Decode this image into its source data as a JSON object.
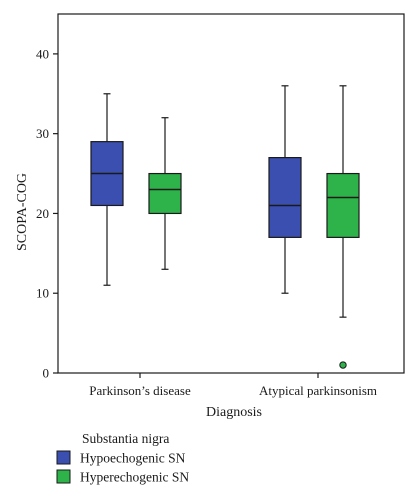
{
  "chart_data": {
    "type": "box",
    "xlabel": "Diagnosis",
    "ylabel": "SCOPA-COG",
    "ylim": [
      0,
      45
    ],
    "yticks": [
      0,
      10,
      20,
      30,
      40
    ],
    "categories": [
      "Parkinson’s disease",
      "Atypical parkinsonism"
    ],
    "series": [
      {
        "name": "Hypoechogenic SN",
        "color": "#3b4fb0",
        "boxes": [
          {
            "min": 11,
            "q1": 21,
            "median": 25,
            "q3": 29,
            "max": 35,
            "outliers": []
          },
          {
            "min": 10,
            "q1": 17,
            "median": 21,
            "q3": 27,
            "max": 36,
            "outliers": []
          }
        ]
      },
      {
        "name": "Hyperechogenic SN",
        "color": "#2db34a",
        "boxes": [
          {
            "min": 13,
            "q1": 20,
            "median": 23,
            "q3": 25,
            "max": 32,
            "outliers": []
          },
          {
            "min": 7,
            "q1": 17,
            "median": 22,
            "q3": 25,
            "max": 36,
            "outliers": [
              1
            ]
          }
        ]
      }
    ],
    "legend": {
      "title": "Substantia nigra",
      "placement": "bottom-left"
    },
    "grid": false
  }
}
